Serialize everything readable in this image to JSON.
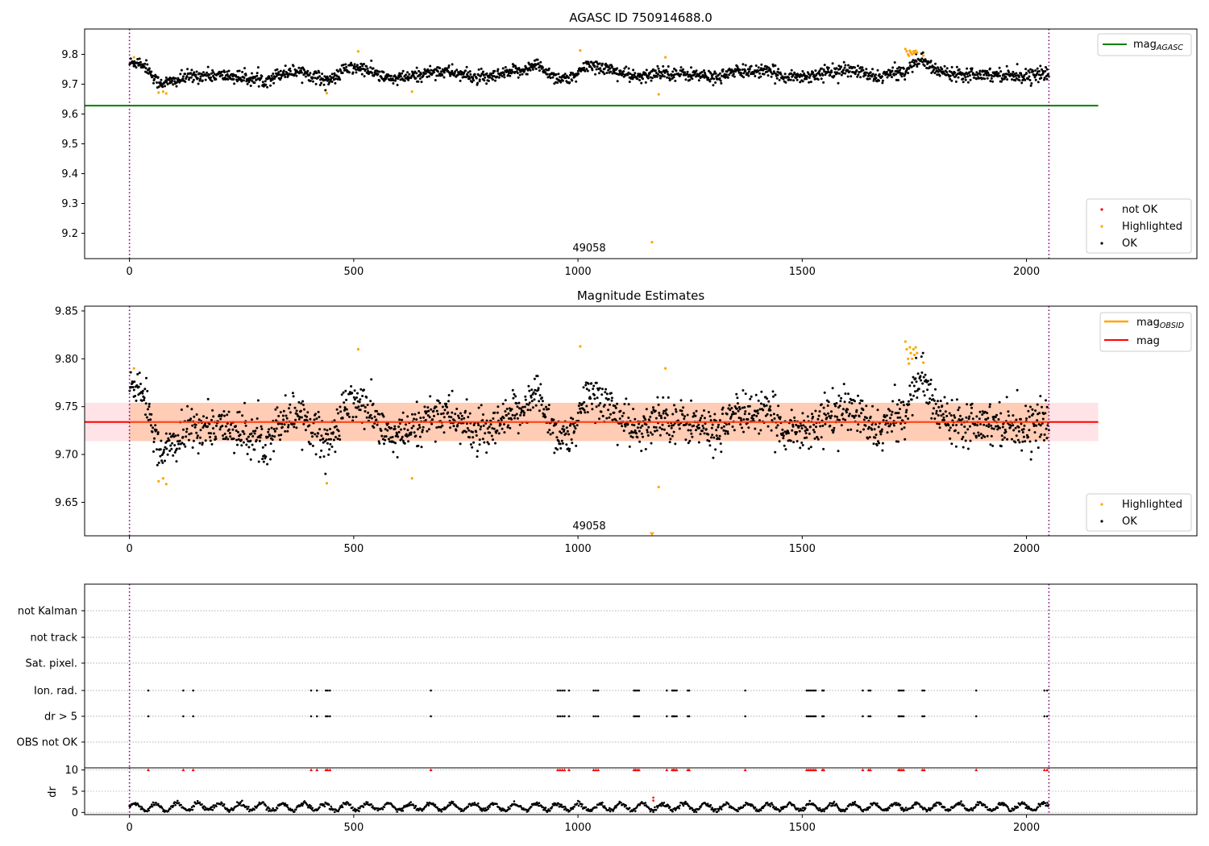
{
  "chart_data": [
    {
      "type": "scatter",
      "title": "AGASC ID 750914688.0",
      "xlim": [
        -100,
        2380
      ],
      "ylim": [
        9.115,
        9.885
      ],
      "xticks": [
        0,
        500,
        1000,
        1500,
        2000
      ],
      "yticks": [
        9.2,
        9.3,
        9.4,
        9.5,
        9.6,
        9.7,
        9.8
      ],
      "vlines": [
        0,
        2050
      ],
      "hline": {
        "name": "mag",
        "subscript": "AGASC",
        "y": 9.628,
        "x": [
          -100,
          2160
        ],
        "color": "#008000"
      },
      "annotation": {
        "text": "49058",
        "x": 1025,
        "y": 9.15
      },
      "trend": {
        "x": [
          0,
          20,
          40,
          60,
          80,
          100,
          130,
          170,
          220,
          260,
          300,
          340,
          380,
          420,
          450,
          480,
          510,
          540,
          570,
          600,
          640,
          680,
          720,
          760,
          800,
          840,
          880,
          910,
          950,
          990,
          1020,
          1060,
          1100,
          1140,
          1180,
          1220,
          1260,
          1300,
          1340,
          1380,
          1420,
          1460,
          1500,
          1540,
          1580,
          1620,
          1660,
          1700,
          1730,
          1760,
          1800,
          1850,
          1900,
          1950,
          2000,
          2050
        ],
        "y": [
          9.77,
          9.775,
          9.755,
          9.708,
          9.705,
          9.71,
          9.725,
          9.73,
          9.728,
          9.72,
          9.712,
          9.738,
          9.745,
          9.722,
          9.712,
          9.75,
          9.755,
          9.742,
          9.72,
          9.718,
          9.728,
          9.745,
          9.74,
          9.725,
          9.72,
          9.735,
          9.75,
          9.765,
          9.722,
          9.718,
          9.765,
          9.755,
          9.735,
          9.72,
          9.742,
          9.735,
          9.732,
          9.722,
          9.738,
          9.745,
          9.742,
          9.728,
          9.725,
          9.735,
          9.745,
          9.745,
          9.722,
          9.735,
          9.745,
          9.785,
          9.745,
          9.735,
          9.735,
          9.732,
          9.728,
          9.735
        ]
      },
      "highlighted": [
        {
          "x": 10,
          "y": 9.79
        },
        {
          "x": 65,
          "y": 9.672
        },
        {
          "x": 75,
          "y": 9.675
        },
        {
          "x": 82,
          "y": 9.669
        },
        {
          "x": 440,
          "y": 9.67
        },
        {
          "x": 510,
          "y": 9.81
        },
        {
          "x": 630,
          "y": 9.675
        },
        {
          "x": 1005,
          "y": 9.813
        },
        {
          "x": 1165,
          "y": 9.17
        },
        {
          "x": 1180,
          "y": 9.666
        },
        {
          "x": 1195,
          "y": 9.79
        },
        {
          "x": 1730,
          "y": 9.818
        },
        {
          "x": 1733,
          "y": 9.81
        },
        {
          "x": 1736,
          "y": 9.8
        },
        {
          "x": 1738,
          "y": 9.795
        },
        {
          "x": 1740,
          "y": 9.812
        },
        {
          "x": 1742,
          "y": 9.806
        },
        {
          "x": 1745,
          "y": 9.8
        },
        {
          "x": 1748,
          "y": 9.81
        },
        {
          "x": 1750,
          "y": 9.804
        },
        {
          "x": 1753,
          "y": 9.812
        },
        {
          "x": 1756,
          "y": 9.806
        },
        {
          "x": 1770,
          "y": 9.796
        }
      ],
      "legends": [
        {
          "position": "upper-right",
          "entries": [
            {
              "label": "mag",
              "subscript": "AGASC",
              "kind": "line",
              "color": "#008000"
            }
          ]
        },
        {
          "position": "lower-right",
          "entries": [
            {
              "label": "not OK",
              "kind": "dot",
              "color": "#ff0000"
            },
            {
              "label": "Highlighted",
              "kind": "dot",
              "color": "#ffa500"
            },
            {
              "label": "OK",
              "kind": "dot",
              "color": "#000000"
            }
          ]
        }
      ]
    },
    {
      "type": "scatter",
      "title": "Magnitude Estimates",
      "xlim": [
        -100,
        2380
      ],
      "ylim": [
        9.615,
        9.855
      ],
      "xticks": [
        0,
        500,
        1000,
        1500,
        2000
      ],
      "yticks": [
        9.65,
        9.7,
        9.75,
        9.8,
        9.85
      ],
      "vlines": [
        0,
        2050
      ],
      "hline": {
        "name": "mag",
        "y": 9.734,
        "x": [
          -100,
          2160
        ],
        "color": "#ff0000"
      },
      "band": {
        "y": [
          9.714,
          9.754
        ],
        "x_inner": [
          0,
          2050
        ],
        "x_outer": [
          -100,
          2160
        ]
      },
      "annotation": {
        "text": "49058",
        "x": 1025,
        "y": 9.624
      },
      "markers_below": [
        {
          "x": 1165,
          "y": 9.617
        }
      ],
      "highlighted": [
        {
          "x": 10,
          "y": 9.79
        },
        {
          "x": 65,
          "y": 9.672
        },
        {
          "x": 75,
          "y": 9.675
        },
        {
          "x": 82,
          "y": 9.669
        },
        {
          "x": 440,
          "y": 9.67
        },
        {
          "x": 510,
          "y": 9.81
        },
        {
          "x": 630,
          "y": 9.675
        },
        {
          "x": 1005,
          "y": 9.813
        },
        {
          "x": 1180,
          "y": 9.666
        },
        {
          "x": 1195,
          "y": 9.79
        },
        {
          "x": 1730,
          "y": 9.818
        },
        {
          "x": 1733,
          "y": 9.81
        },
        {
          "x": 1736,
          "y": 9.8
        },
        {
          "x": 1738,
          "y": 9.795
        },
        {
          "x": 1740,
          "y": 9.812
        },
        {
          "x": 1742,
          "y": 9.806
        },
        {
          "x": 1745,
          "y": 9.8
        },
        {
          "x": 1748,
          "y": 9.81
        },
        {
          "x": 1750,
          "y": 9.804
        },
        {
          "x": 1753,
          "y": 9.812
        },
        {
          "x": 1756,
          "y": 9.806
        },
        {
          "x": 1770,
          "y": 9.796
        }
      ],
      "legends": [
        {
          "position": "upper-right",
          "entries": [
            {
              "label": "mag",
              "subscript": "OBSID",
              "kind": "line",
              "color": "#ffa500"
            },
            {
              "label": "mag",
              "kind": "line",
              "color": "#ff0000"
            }
          ]
        },
        {
          "position": "lower-right",
          "entries": [
            {
              "label": "Highlighted",
              "kind": "dot",
              "color": "#ffa500"
            },
            {
              "label": "OK",
              "kind": "dot",
              "color": "#000000"
            }
          ]
        }
      ]
    },
    {
      "type": "scatter",
      "title": "",
      "xlim": [
        -100,
        2380
      ],
      "categories": [
        "not Kalman",
        "not track",
        "Sat. pixel.",
        "Ion. rad.",
        "dr > 5",
        "OBS not OK"
      ],
      "vlines": [
        0,
        2050
      ],
      "flag_x": [
        42,
        120,
        142,
        405,
        418,
        438,
        442,
        447,
        672,
        955,
        960,
        965,
        970,
        980,
        1035,
        1040,
        1045,
        1125,
        1128,
        1132,
        1136,
        1198,
        1210,
        1213,
        1216,
        1220,
        1245,
        1248,
        1373,
        1510,
        1514,
        1518,
        1522,
        1526,
        1530,
        1545,
        1548,
        1635,
        1648,
        1652,
        1715,
        1718,
        1722,
        1726,
        1768,
        1772,
        1888,
        2040,
        2046
      ],
      "flag_rows": [
        "Ion. rad.",
        "dr > 5"
      ]
    },
    {
      "type": "scatter",
      "title": "",
      "ylabel": "dr",
      "xlim": [
        -100,
        2380
      ],
      "ylim": [
        -0.5,
        10.5
      ],
      "xticks": [
        0,
        500,
        1000,
        1500,
        2000
      ],
      "yticks": [
        0,
        5,
        10
      ],
      "vlines": [
        0,
        2050
      ],
      "outlier": {
        "x": 1168,
        "y": 3.5
      },
      "clipped_at": 10
    }
  ]
}
